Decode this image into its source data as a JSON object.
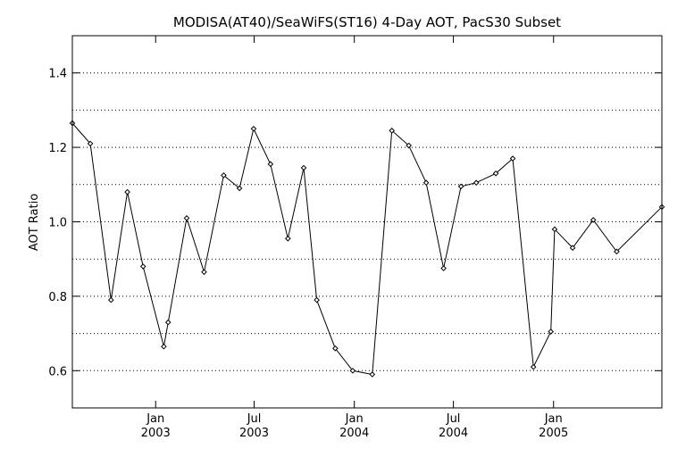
{
  "chart_data": {
    "type": "line",
    "title": "MODISA(AT40)/SeaWiFS(ST16) 4-Day AOT, PacS30 Subset",
    "xlabel": "",
    "ylabel": "AOT Ratio",
    "xlim": [
      "2002-08-01",
      "2005-07-19"
    ],
    "ylim": [
      0.5,
      1.5
    ],
    "yticks": [
      {
        "value": 0.6,
        "label": "0.6"
      },
      {
        "value": 0.8,
        "label": "0.8"
      },
      {
        "value": 1.0,
        "label": "1.0"
      },
      {
        "value": 1.2,
        "label": "1.2"
      },
      {
        "value": 1.4,
        "label": "1.4"
      }
    ],
    "ygrid": [
      0.6,
      0.7,
      0.8,
      0.9,
      1.0,
      1.1,
      1.2,
      1.3,
      1.4
    ],
    "xticks": [
      {
        "date": "2003-01-01",
        "label": "Jan",
        "year": "2003"
      },
      {
        "date": "2003-07-01",
        "label": "Jul",
        "year": "2003"
      },
      {
        "date": "2004-01-01",
        "label": "Jan",
        "year": "2004"
      },
      {
        "date": "2004-07-01",
        "label": "Jul",
        "year": "2004"
      },
      {
        "date": "2005-01-01",
        "label": "Jan",
        "year": "2005"
      }
    ],
    "grid": "horizontal dotted",
    "series": [
      {
        "x": [
          "2002-08-01",
          "2002-09-03",
          "2002-10-11",
          "2002-11-10",
          "2002-12-09",
          "2003-01-16",
          "2003-01-24",
          "2003-02-27",
          "2003-03-31",
          "2003-05-06",
          "2003-06-04",
          "2003-06-30",
          "2003-07-31",
          "2003-09-01",
          "2003-09-30",
          "2003-10-24",
          "2003-11-27",
          "2003-12-29",
          "2004-02-03",
          "2004-03-10",
          "2004-04-10",
          "2004-05-12",
          "2004-06-13",
          "2004-07-15",
          "2004-08-12",
          "2004-09-17",
          "2004-10-18",
          "2004-11-25",
          "2004-12-27",
          "2005-01-03",
          "2005-02-05",
          "2005-03-15",
          "2005-04-27",
          "2005-07-19"
        ],
        "values": [
          1.265,
          1.21,
          0.79,
          1.08,
          0.88,
          0.665,
          0.73,
          1.01,
          0.865,
          1.125,
          1.09,
          1.25,
          1.155,
          0.955,
          1.145,
          0.79,
          0.66,
          0.6,
          0.59,
          1.245,
          1.205,
          1.105,
          0.875,
          1.095,
          1.105,
          1.13,
          1.17,
          0.61,
          0.705,
          0.98,
          0.93,
          1.005,
          0.92,
          1.04
        ],
        "marker": "diamond",
        "color": "#000000"
      }
    ]
  }
}
